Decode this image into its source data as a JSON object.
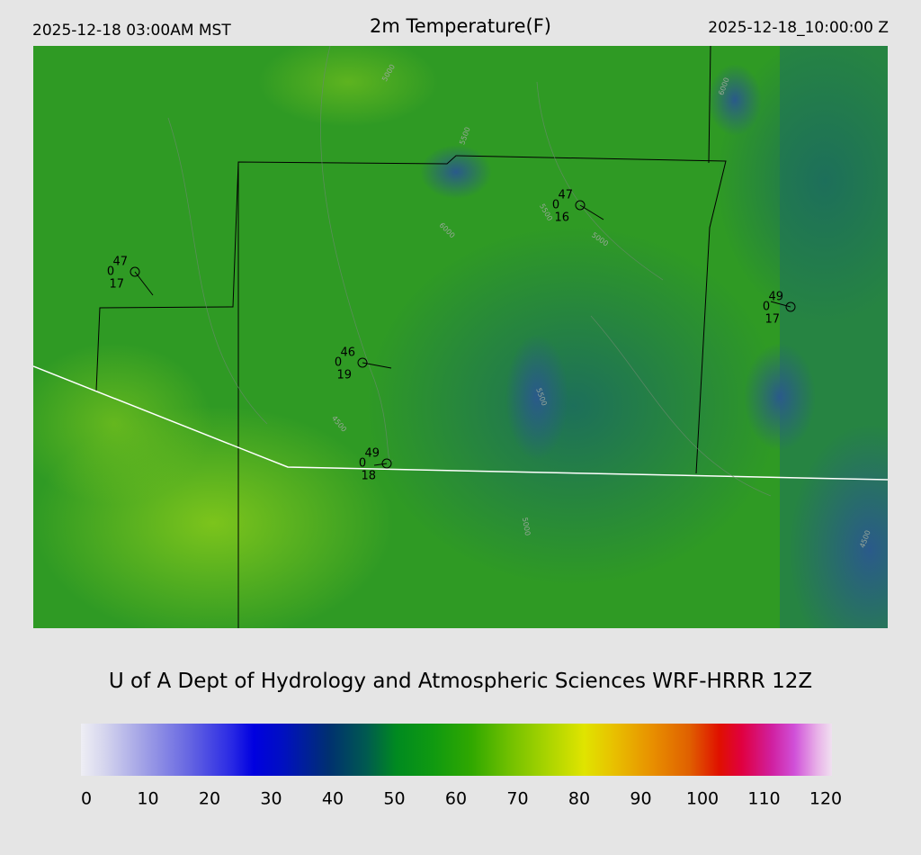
{
  "header": {
    "local_time": "2025-12-18 03:00AM MST",
    "title": "2m Temperature(F)",
    "utc_time": "2025-12-18_10:00:00 Z"
  },
  "stations": [
    {
      "temperature": 47,
      "code": 0,
      "dewpoint": 17
    },
    {
      "temperature": 47,
      "code": 0,
      "dewpoint": 16
    },
    {
      "temperature": 49,
      "code": 0,
      "dewpoint": 17
    },
    {
      "temperature": 46,
      "code": 0,
      "dewpoint": 19
    },
    {
      "temperature": 49,
      "code": 0,
      "dewpoint": 18
    }
  ],
  "contour_labels": [
    "5000",
    "5500",
    "6000",
    "5500",
    "5000",
    "4500",
    "5500",
    "5000",
    "4500",
    "6000"
  ],
  "footer": {
    "credit": "U of A Dept of Hydrology and Atmospheric Sciences WRF-HRRR 12Z"
  },
  "colorbar": {
    "ticks": [
      0,
      10,
      20,
      30,
      40,
      50,
      60,
      70,
      80,
      90,
      100,
      110,
      120
    ]
  }
}
